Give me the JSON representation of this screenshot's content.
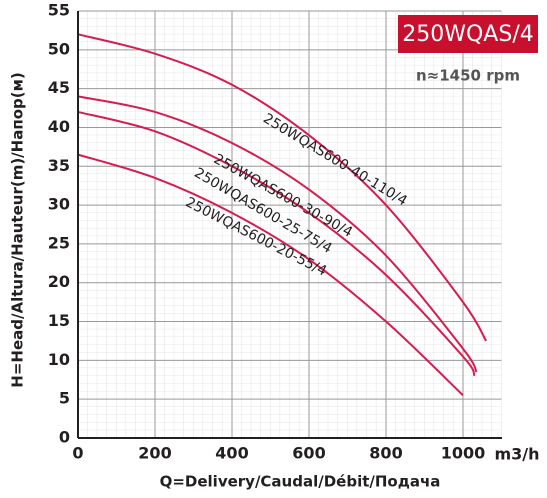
{
  "chart_data": {
    "type": "line",
    "title": "250WQAS/4",
    "subtitle": "n≈1450 rpm",
    "x_label": "Q=Delivery/Caudal/Débit/Подача",
    "x_unit": "m3/h",
    "y_label": "H=Head/Altura/Hauteur(m)/Напор(м)",
    "xlim": [
      0,
      1100
    ],
    "ylim": [
      0,
      55
    ],
    "xticks": [
      0,
      200,
      400,
      600,
      800,
      1000
    ],
    "yticks": [
      0,
      5,
      10,
      15,
      20,
      25,
      30,
      35,
      40,
      45,
      50,
      55
    ],
    "grid": true,
    "series": [
      {
        "name": "250WQAS600-40-110/4",
        "color": "#d81b4f",
        "x": [
          0,
          200,
          400,
          600,
          800,
          1000,
          1060
        ],
        "values": [
          52,
          49.5,
          45.5,
          39,
          30,
          17.5,
          12.5
        ]
      },
      {
        "name": "250WQAS600-30-90/4",
        "color": "#d81b4f",
        "x": [
          0,
          200,
          400,
          600,
          800,
          1000,
          1035
        ],
        "values": [
          44,
          42,
          38,
          32,
          23.5,
          11.5,
          8.5
        ]
      },
      {
        "name": "250WQAS600-25-75/4",
        "color": "#d81b4f",
        "x": [
          0,
          200,
          400,
          600,
          800,
          1000,
          1030
        ],
        "values": [
          42,
          39.5,
          35,
          29,
          21,
          10.5,
          8
        ]
      },
      {
        "name": "250WQAS600-20-55/4",
        "color": "#d81b4f",
        "x": [
          0,
          200,
          400,
          600,
          800,
          1000
        ],
        "values": [
          36.5,
          33.5,
          29,
          23,
          15,
          5.5
        ]
      }
    ]
  }
}
